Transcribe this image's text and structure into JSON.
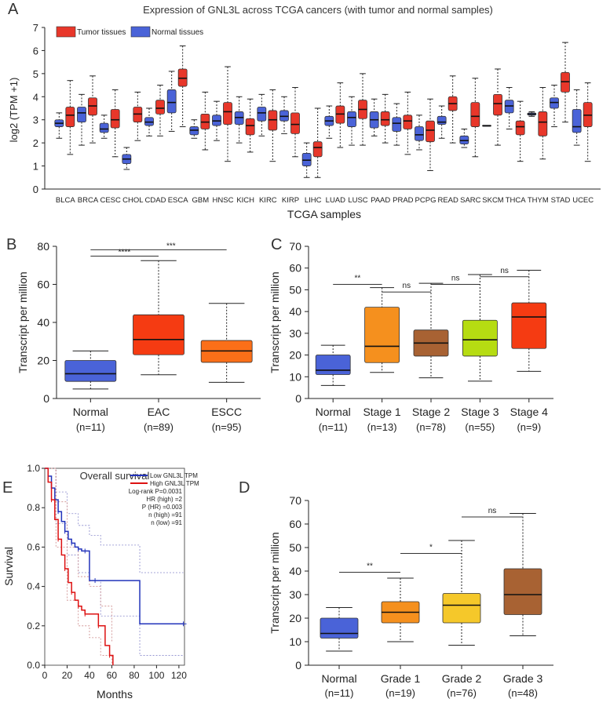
{
  "chart_data": [
    {
      "id": "A",
      "panel_label": "A",
      "type": "box",
      "title": "Expression of GNL3L across TCGA cancers (with tumor and normal samples)",
      "xlabel": "TCGA samples",
      "ylabel": "log2 (TPM +1)",
      "ylim": [
        0,
        7
      ],
      "yticks": [
        0,
        1,
        2,
        3,
        4,
        5,
        6,
        7
      ],
      "legend": {
        "position": "top-left",
        "tumor": "Tumor tissues",
        "normal": "Normal tissues"
      },
      "colors": {
        "tumor": "#e8372a",
        "normal": "#4a63d8"
      },
      "categories": [
        "BLCA",
        "BRCA",
        "CESC",
        "CHOL",
        "CDAD",
        "ESCA",
        "GBM",
        "HNSC",
        "KICH",
        "KIRC",
        "KIRP",
        "LIHC",
        "LUAD",
        "LUSC",
        "PAAD",
        "PRAD",
        "PCPG",
        "READ",
        "SARC",
        "SKCM",
        "THCA",
        "THYM",
        "STAD",
        "UCEC"
      ],
      "normal": [
        [
          2.2,
          2.7,
          2.85,
          3.0,
          3.3
        ],
        [
          1.9,
          2.9,
          3.3,
          3.55,
          4.1
        ],
        [
          2.2,
          2.45,
          2.6,
          2.85,
          3.2
        ],
        [
          0.85,
          1.1,
          1.3,
          1.5,
          1.8
        ],
        [
          2.3,
          2.75,
          2.9,
          3.1,
          3.5
        ],
        [
          2.5,
          3.3,
          3.75,
          4.3,
          5.1
        ],
        [
          2.2,
          2.35,
          2.55,
          2.7,
          3.0
        ],
        [
          2.1,
          2.75,
          2.95,
          3.2,
          3.8
        ],
        [
          2.0,
          2.8,
          3.1,
          3.35,
          4.0
        ],
        [
          2.3,
          2.95,
          3.3,
          3.55,
          4.1
        ],
        [
          2.4,
          2.95,
          3.15,
          3.4,
          4.0
        ],
        [
          0.5,
          1.0,
          1.25,
          1.55,
          2.0
        ],
        [
          2.2,
          2.75,
          2.95,
          3.15,
          3.6
        ],
        [
          1.9,
          2.7,
          3.1,
          3.35,
          4.0
        ],
        [
          2.3,
          2.65,
          3.0,
          3.35,
          3.9
        ],
        [
          1.9,
          2.5,
          2.85,
          3.1,
          3.7
        ],
        [
          1.7,
          2.1,
          2.35,
          2.7,
          3.2
        ],
        [
          2.2,
          2.8,
          2.9,
          3.15,
          3.6
        ],
        [
          1.8,
          1.95,
          2.1,
          2.3,
          2.6
        ],
        [
          2.75,
          2.75,
          2.75,
          2.75,
          2.75
        ],
        [
          2.6,
          3.3,
          3.6,
          3.85,
          4.4
        ],
        [
          3.15,
          3.2,
          3.25,
          3.3,
          3.35
        ],
        [
          2.7,
          3.5,
          3.75,
          3.95,
          4.5
        ],
        [
          1.9,
          2.45,
          2.7,
          3.45,
          4.3
        ]
      ],
      "tumor": [
        [
          1.5,
          2.7,
          3.2,
          3.55,
          4.7
        ],
        [
          2.0,
          3.2,
          3.6,
          3.95,
          4.9
        ],
        [
          1.4,
          2.65,
          3.0,
          3.45,
          4.3
        ],
        [
          2.1,
          2.9,
          3.25,
          3.55,
          4.2
        ],
        [
          2.3,
          3.25,
          3.5,
          3.85,
          4.5
        ],
        [
          2.7,
          4.45,
          4.8,
          5.2,
          6.2
        ],
        [
          1.7,
          2.6,
          2.9,
          3.25,
          4.2
        ],
        [
          1.2,
          2.8,
          3.35,
          3.75,
          5.3
        ],
        [
          1.6,
          2.35,
          2.75,
          3.05,
          3.9
        ],
        [
          1.2,
          2.55,
          3.0,
          3.4,
          4.3
        ],
        [
          1.4,
          2.4,
          2.8,
          3.3,
          4.4
        ],
        [
          0.5,
          1.4,
          1.8,
          2.05,
          3.5
        ],
        [
          1.8,
          2.85,
          3.25,
          3.6,
          4.6
        ],
        [
          1.9,
          3.05,
          3.45,
          3.85,
          5.0
        ],
        [
          2.0,
          2.75,
          3.0,
          3.35,
          4.1
        ],
        [
          1.5,
          2.6,
          2.95,
          3.2,
          4.2
        ],
        [
          0.8,
          2.05,
          2.55,
          2.95,
          3.9
        ],
        [
          2.0,
          3.4,
          3.7,
          4.0,
          4.9
        ],
        [
          1.4,
          2.7,
          3.15,
          3.75,
          4.8
        ],
        [
          1.9,
          3.2,
          3.7,
          4.1,
          5.2
        ],
        [
          1.2,
          2.35,
          2.7,
          2.95,
          3.8
        ],
        [
          1.3,
          2.3,
          2.9,
          3.35,
          4.4
        ],
        [
          2.9,
          4.2,
          4.65,
          5.05,
          6.35
        ],
        [
          1.2,
          2.7,
          3.2,
          3.75,
          4.6
        ]
      ]
    },
    {
      "id": "B",
      "panel_label": "B",
      "type": "box",
      "xlabel": "",
      "ylabel": "Transcript per million",
      "ylim": [
        0,
        80
      ],
      "yticks": [
        0,
        20,
        40,
        60,
        80
      ],
      "categories": [
        "Normal",
        "EAC",
        "ESCC"
      ],
      "sublabels": [
        "(n=11)",
        "(n=89)",
        "(n=95)"
      ],
      "colors": [
        "#4a63d8",
        "#f53b12",
        "#fb6f18"
      ],
      "boxes": [
        [
          5,
          9,
          13,
          20,
          25
        ],
        [
          12.5,
          23,
          31,
          44,
          72.5
        ],
        [
          8.5,
          19,
          25,
          30.5,
          50
        ]
      ],
      "significance": [
        {
          "from": 0,
          "to": 1,
          "label": "****"
        },
        {
          "from": 0,
          "to": 2,
          "label": "***"
        }
      ]
    },
    {
      "id": "C",
      "panel_label": "C",
      "type": "box",
      "xlabel": "",
      "ylabel": "Transcript per million",
      "ylim": [
        0,
        70
      ],
      "yticks": [
        0,
        10,
        20,
        30,
        40,
        50,
        60,
        70
      ],
      "categories": [
        "Normal",
        "Stage 1",
        "Stage 2",
        "Stage 3",
        "Stage 4"
      ],
      "sublabels": [
        "(n=11)",
        "(n=13)",
        "(n=78)",
        "(n=55)",
        "(n=9)"
      ],
      "colors": [
        "#4a63d8",
        "#f5901e",
        "#a86233",
        "#b6dc12",
        "#f53b12"
      ],
      "boxes": [
        [
          6,
          11,
          13,
          20,
          24.5
        ],
        [
          12,
          16.5,
          24,
          42,
          51
        ],
        [
          9.5,
          19.5,
          25.5,
          31.5,
          53
        ],
        [
          8,
          19.5,
          27,
          36,
          57
        ],
        [
          12.5,
          23,
          37.5,
          44,
          59
        ]
      ],
      "significance": [
        {
          "from": 0,
          "to": 1,
          "label": "**"
        },
        {
          "from": 1,
          "to": 2,
          "label": "ns"
        },
        {
          "from": 2,
          "to": 3,
          "label": "ns"
        },
        {
          "from": 3,
          "to": 4,
          "label": "ns"
        }
      ]
    },
    {
      "id": "D",
      "panel_label": "D",
      "type": "box",
      "xlabel": "",
      "ylabel": "Transcript per million",
      "ylim": [
        0,
        70
      ],
      "yticks": [
        0,
        10,
        20,
        30,
        40,
        50,
        60,
        70
      ],
      "categories": [
        "Normal",
        "Grade 1",
        "Grade 2",
        "Grade 3"
      ],
      "sublabels": [
        "(n=11)",
        "(n=19)",
        "(n=76)",
        "(n=48)"
      ],
      "colors": [
        "#4a63d8",
        "#f5901e",
        "#f5c82a",
        "#a86233"
      ],
      "boxes": [
        [
          6,
          11.5,
          13.5,
          20,
          24.5
        ],
        [
          10,
          18,
          22.5,
          27,
          37
        ],
        [
          8.5,
          18,
          25.5,
          30.5,
          53
        ],
        [
          12.5,
          21.5,
          30,
          41,
          64.5
        ]
      ],
      "significance": [
        {
          "from": 0,
          "to": 1,
          "label": "**"
        },
        {
          "from": 1,
          "to": 2,
          "label": "*"
        },
        {
          "from": 2,
          "to": 3,
          "label": "ns"
        }
      ]
    },
    {
      "id": "E",
      "panel_label": "E",
      "type": "line",
      "title": "Overall survival",
      "xlabel": "Months",
      "ylabel": "Survival",
      "xlim": [
        0,
        125
      ],
      "ylim": [
        0,
        1.0
      ],
      "xticks": [
        0,
        20,
        40,
        60,
        80,
        100,
        120
      ],
      "yticks": [
        0.0,
        0.2,
        0.4,
        0.6,
        0.8,
        1.0
      ],
      "legend": {
        "position": "top-right",
        "entries": [
          "Low GNL3L TPM",
          "High GNL3L TPM"
        ],
        "stats": [
          "Log-rank P=0.0031",
          "HR (high) =2",
          "P (HR) =0.003",
          "n (high) =91",
          "n (low) =91"
        ]
      },
      "series": [
        {
          "name": "Low GNL3L TPM",
          "color": "#2233bb",
          "x": [
            0,
            3,
            6,
            9,
            12,
            15,
            18,
            21,
            24,
            27,
            30,
            33,
            36,
            40,
            45,
            85,
            124
          ],
          "y": [
            1.0,
            0.96,
            0.9,
            0.84,
            0.78,
            0.73,
            0.68,
            0.64,
            0.62,
            0.6,
            0.59,
            0.58,
            0.58,
            0.43,
            0.43,
            0.21,
            0.21
          ]
        },
        {
          "name": "High GNL3L TPM",
          "color": "#dd1111",
          "x": [
            0,
            3,
            6,
            9,
            12,
            15,
            18,
            21,
            24,
            27,
            30,
            33,
            36,
            42,
            48,
            54,
            58,
            61
          ],
          "y": [
            1.0,
            0.93,
            0.84,
            0.74,
            0.64,
            0.56,
            0.49,
            0.42,
            0.37,
            0.33,
            0.3,
            0.28,
            0.26,
            0.26,
            0.2,
            0.1,
            0.05,
            0.0
          ]
        }
      ],
      "ci_low": {
        "x": [
          0,
          10,
          20,
          30,
          40,
          50,
          60,
          70,
          85,
          100,
          124
        ],
        "upper": [
          1.0,
          0.88,
          0.77,
          0.71,
          0.66,
          0.61,
          0.61,
          0.61,
          0.47,
          0.47,
          0.47
        ],
        "lower": [
          1.0,
          0.72,
          0.56,
          0.47,
          0.43,
          0.25,
          0.25,
          0.25,
          0.05,
          0.05,
          0.05
        ]
      },
      "ci_high": {
        "x": [
          0,
          10,
          20,
          30,
          40,
          50,
          60
        ],
        "upper": [
          1.0,
          0.83,
          0.6,
          0.45,
          0.4,
          0.3,
          0.12
        ],
        "lower": [
          1.0,
          0.6,
          0.33,
          0.2,
          0.14,
          0.05,
          0.0
        ]
      }
    }
  ]
}
